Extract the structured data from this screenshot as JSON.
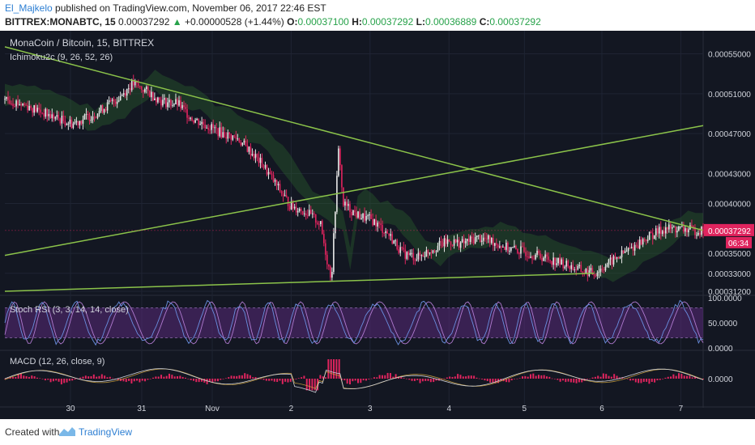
{
  "header": {
    "author": "El_Majkelo",
    "published": "published on TradingView.com, November 06, 2017 22:46 EST",
    "symbol": "BITTREX:MONABTC, 15",
    "last": "0.00037292",
    "change_arrow": "▲",
    "change": "+0.00000528 (+1.44%)",
    "o_label": "O:",
    "o_value": "0.00037100",
    "h_label": "H:",
    "h_value": "0.00037292",
    "l_label": "L:",
    "l_value": "0.00036889",
    "c_label": "C:",
    "c_value": "0.00037292"
  },
  "footer": {
    "created": "Created with",
    "brand": "TradingView"
  },
  "colors": {
    "background": "#131722",
    "bull": "#e8e8e8",
    "bear": "#e0245e",
    "trendline": "#8bc34a",
    "cloud": "#2e6b2e",
    "rsi_band": "#5a2a7a",
    "rsi_k": "#6a8fe0",
    "rsi_d": "#b07ad0",
    "macd_hist": "#e0245e",
    "price_tag": "#e0245e"
  },
  "chart_data": [
    {
      "type": "candlestick",
      "title": "MonaCoin / Bitcoin, 15, BITTREX",
      "indicator_label": "Ichimoku2c (9, 26, 52, 26)",
      "ylim": [
        0.000312,
        0.000565
      ],
      "y_ticks": [
        "0.00055000",
        "0.00051000",
        "0.00047000",
        "0.00043000",
        "0.00040000",
        "0.00035000",
        "0.00033000",
        "0.00031200"
      ],
      "y_tick_values": [
        0.00055,
        0.00051,
        0.00047,
        0.00043,
        0.0004,
        0.00035,
        0.00033,
        0.000312
      ],
      "last_price_tag": "0.00037292",
      "countdown_tag": "06:34",
      "x_ticks": [
        "30",
        "31",
        "Nov",
        "2",
        "3",
        "4",
        "5",
        "6",
        "7"
      ],
      "price_path": [
        [
          0,
          0.000505
        ],
        [
          3,
          0.000498
        ],
        [
          6,
          0.000488
        ],
        [
          9,
          0.00048
        ],
        [
          12,
          0.00049
        ],
        [
          15,
          0.000505
        ],
        [
          17,
          0.00052
        ],
        [
          19,
          0.000512
        ],
        [
          21,
          0.000502
        ],
        [
          23,
          0.0005
        ],
        [
          25,
          0.000485
        ],
        [
          27,
          0.000478
        ],
        [
          29,
          0.00047
        ],
        [
          31,
          0.000465
        ],
        [
          33,
          0.00045
        ],
        [
          34.5,
          0.000437
        ],
        [
          36,
          0.00042
        ],
        [
          38,
          0.000398
        ],
        [
          40,
          0.000392
        ],
        [
          42,
          0.00038
        ],
        [
          43,
          0.00034
        ],
        [
          43.5,
          0.000325
        ],
        [
          44,
          0.000395
        ],
        [
          44.5,
          0.00046
        ],
        [
          45,
          0.0004
        ],
        [
          47,
          0.000388
        ],
        [
          49,
          0.000383
        ],
        [
          51,
          0.00037
        ],
        [
          53,
          0.00035
        ],
        [
          55,
          0.000346
        ],
        [
          57,
          0.000355
        ],
        [
          59,
          0.000362
        ],
        [
          61,
          0.00036
        ],
        [
          63,
          0.000366
        ],
        [
          65,
          0.000362
        ],
        [
          67,
          0.000355
        ],
        [
          69,
          0.000352
        ],
        [
          71,
          0.000348
        ],
        [
          73,
          0.000343
        ],
        [
          75,
          0.000338
        ],
        [
          77,
          0.000332
        ],
        [
          78.5,
          0.00033
        ],
        [
          80,
          0.000338
        ],
        [
          82,
          0.000348
        ],
        [
          84,
          0.000358
        ],
        [
          86,
          0.000368
        ],
        [
          88,
          0.000375
        ],
        [
          90,
          0.000374
        ],
        [
          92,
          0.000373
        ],
        [
          93,
          0.0003729
        ]
      ],
      "trendlines": [
        {
          "from": [
            0,
            0.000557
          ],
          "to": [
            93,
            0.000373
          ]
        },
        {
          "from": [
            0,
            0.000348
          ],
          "to": [
            93,
            0.000478
          ]
        },
        {
          "from": [
            0,
            0.000312
          ],
          "to": [
            78.5,
            0.00033
          ]
        }
      ]
    },
    {
      "type": "line",
      "title": "Stoch RSI (3, 3, 14, 14, close)",
      "ylim": [
        0,
        100
      ],
      "band": [
        20,
        80
      ],
      "y_ticks": [
        "100.0000",
        "50.0000",
        "0.0000"
      ],
      "y_tick_values": [
        100,
        50,
        0
      ]
    },
    {
      "type": "bar",
      "title": "MACD (12, 26, close, 9)",
      "ylim": [
        -4e-05,
        4e-05
      ],
      "y_ticks": [
        "0.0000"
      ],
      "y_tick_values": [
        0
      ]
    }
  ]
}
